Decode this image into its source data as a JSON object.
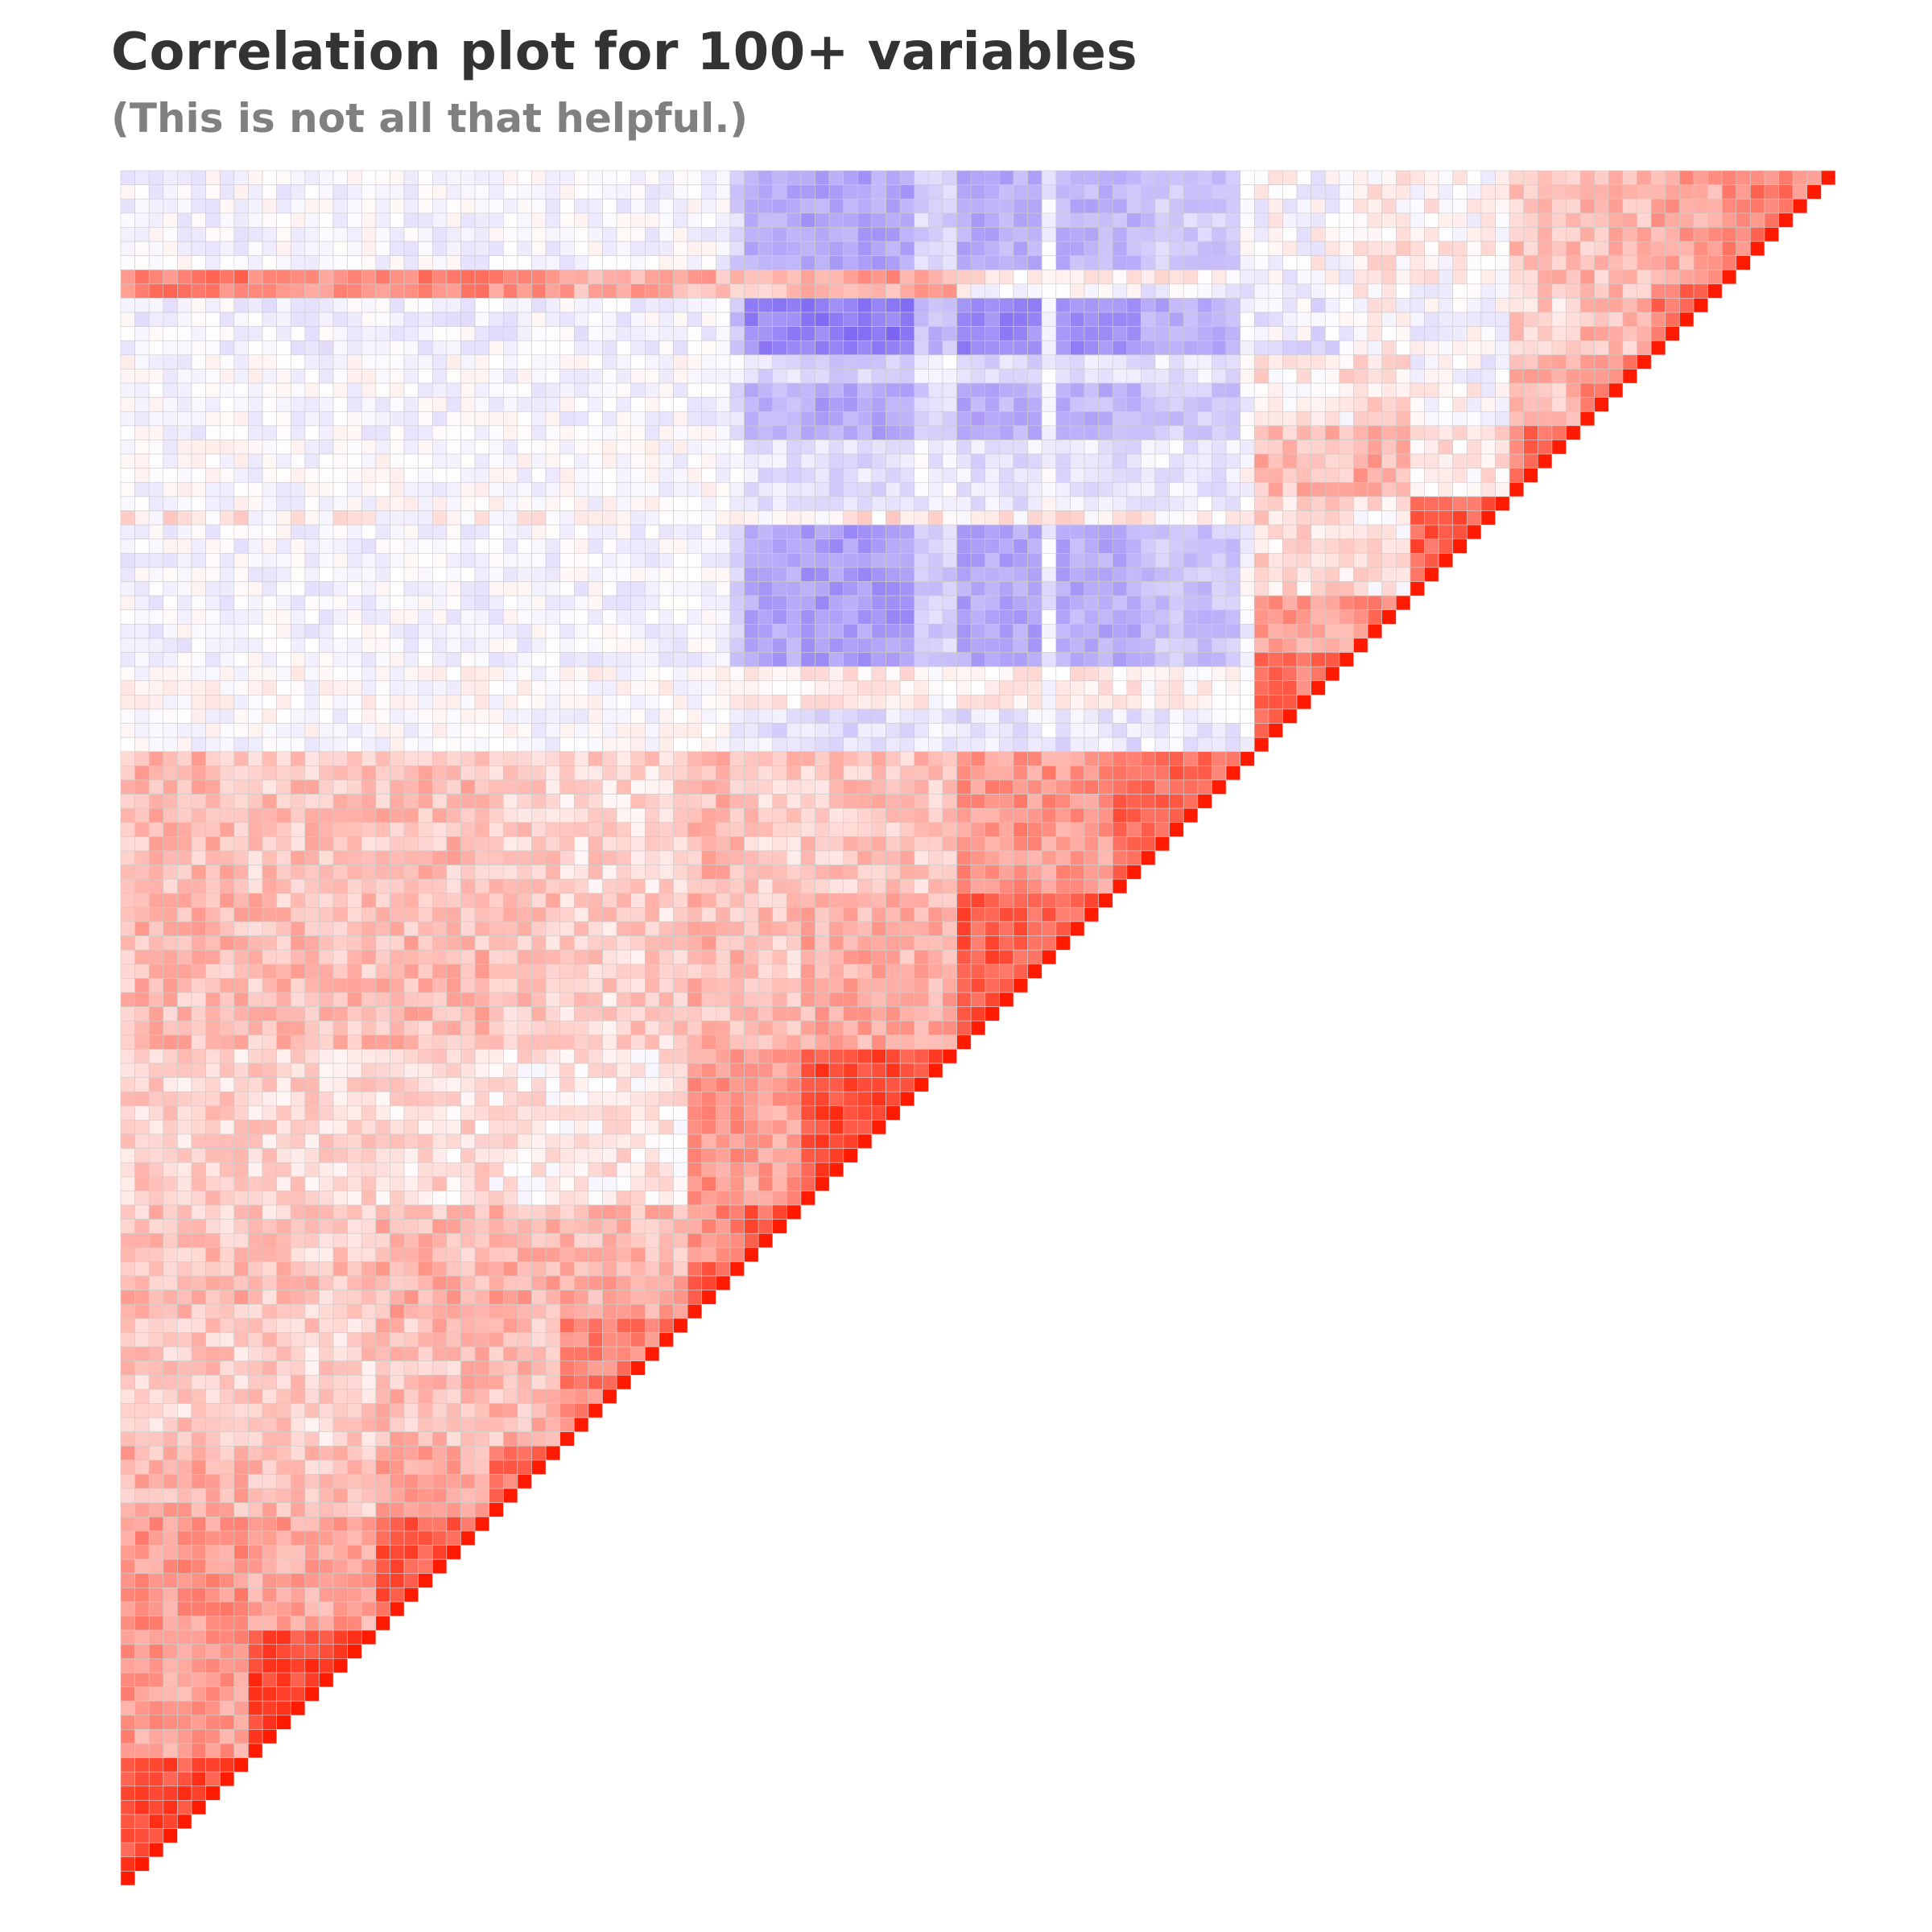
{
  "chart_data": {
    "type": "heatmap",
    "title": "Correlation plot for 100+ variables",
    "subtitle": "(This is not all that helpful.)",
    "n_variables": 121,
    "layout": "lower-triangular",
    "value_range": [
      -1,
      1
    ],
    "colors": {
      "negative": "#4422ee",
      "zero": "#ffffff",
      "positive": "#ff1a00",
      "cell_border": "#cccccc"
    },
    "block_boundaries": [
      0,
      9,
      18,
      26,
      31,
      40,
      44,
      48,
      59,
      70,
      80,
      87,
      91,
      98,
      103,
      108,
      113,
      121
    ],
    "block_correlation": [
      [
        0.78,
        0.42,
        0.45,
        0.33,
        0.22,
        0.3,
        0.25,
        0.2,
        0.3,
        0.3,
        0.35,
        0.4,
        0.1,
        0.4,
        0.42,
        0.55,
        0.58
      ],
      [
        0.42,
        0.8,
        0.4,
        0.28,
        0.2,
        0.25,
        0.22,
        0.18,
        0.28,
        0.25,
        0.3,
        0.35,
        0.08,
        0.35,
        0.38,
        0.45,
        0.48
      ],
      [
        0.45,
        0.4,
        0.7,
        0.38,
        0.28,
        0.35,
        0.3,
        0.15,
        0.3,
        0.28,
        0.3,
        0.35,
        0.05,
        0.35,
        0.4,
        0.5,
        0.52
      ],
      [
        0.33,
        0.28,
        0.38,
        0.6,
        0.3,
        0.35,
        0.3,
        0.1,
        0.25,
        0.22,
        0.25,
        0.3,
        0.05,
        0.3,
        0.35,
        0.45,
        0.48
      ],
      [
        0.22,
        0.2,
        0.28,
        0.3,
        0.55,
        0.35,
        0.3,
        0.1,
        0.2,
        0.18,
        0.2,
        0.25,
        0.0,
        0.25,
        0.3,
        0.35,
        0.38
      ],
      [
        0.3,
        0.25,
        0.35,
        0.35,
        0.35,
        0.75,
        0.5,
        0.45,
        0.3,
        0.3,
        0.25,
        0.3,
        0.1,
        0.4,
        0.35,
        0.3,
        0.35
      ],
      [
        0.25,
        0.22,
        0.3,
        0.3,
        0.3,
        0.5,
        0.7,
        0.4,
        0.25,
        0.22,
        0.2,
        0.25,
        0.05,
        0.3,
        0.3,
        0.25,
        0.3
      ],
      [
        0.2,
        0.18,
        0.15,
        0.1,
        0.1,
        0.45,
        0.4,
        0.8,
        0.35,
        0.25,
        0.25,
        0.3,
        0.1,
        0.5,
        0.4,
        0.35,
        0.4
      ],
      [
        0.3,
        0.28,
        0.3,
        0.25,
        0.2,
        0.3,
        0.25,
        0.35,
        0.7,
        0.45,
        0.4,
        0.4,
        0.1,
        0.35,
        0.2,
        0.05,
        0.1
      ],
      [
        0.3,
        0.25,
        0.28,
        0.22,
        0.18,
        0.3,
        0.22,
        0.25,
        0.45,
        0.65,
        0.45,
        0.35,
        0.1,
        0.35,
        0.1,
        -0.05,
        0.05
      ],
      [
        0.35,
        0.3,
        0.3,
        0.25,
        0.2,
        0.25,
        0.2,
        0.25,
        0.4,
        0.45,
        0.6,
        0.4,
        0.15,
        0.3,
        0.1,
        -0.1,
        0.0
      ],
      [
        0.4,
        0.35,
        0.35,
        0.3,
        0.25,
        0.3,
        0.25,
        0.3,
        0.4,
        0.35,
        0.4,
        0.55,
        0.1,
        0.35,
        0.15,
        0.05,
        0.1
      ],
      [
        0.1,
        0.08,
        0.05,
        0.05,
        0.0,
        0.1,
        0.05,
        0.1,
        0.1,
        0.1,
        0.15,
        0.1,
        0.7,
        0.1,
        0.0,
        0.0,
        0.05
      ],
      [
        0.4,
        0.35,
        0.35,
        0.3,
        0.25,
        0.4,
        0.3,
        0.5,
        0.35,
        0.35,
        0.3,
        0.35,
        0.1,
        0.6,
        0.3,
        0.2,
        0.25
      ],
      [
        0.42,
        0.38,
        0.4,
        0.35,
        0.3,
        0.35,
        0.3,
        0.4,
        0.2,
        0.1,
        0.1,
        0.15,
        0.0,
        0.3,
        0.55,
        0.3,
        0.3
      ],
      [
        0.55,
        0.45,
        0.5,
        0.45,
        0.35,
        0.3,
        0.25,
        0.35,
        0.05,
        -0.05,
        -0.1,
        0.05,
        0.0,
        0.2,
        0.3,
        0.6,
        0.4
      ],
      [
        0.58,
        0.48,
        0.52,
        0.48,
        0.38,
        0.35,
        0.3,
        0.4,
        0.1,
        0.05,
        0.0,
        0.1,
        0.05,
        0.25,
        0.3,
        0.4,
        0.55
      ]
    ],
    "negative_rows": [
      {
        "from": 0,
        "to": 7,
        "corr": -0.4
      },
      {
        "from": 9,
        "to": 13,
        "corr": -0.6
      },
      {
        "from": 13,
        "to": 15,
        "corr": -0.2
      },
      {
        "from": 15,
        "to": 19,
        "corr": -0.4
      },
      {
        "from": 19,
        "to": 24,
        "corr": -0.15
      },
      {
        "from": 25,
        "to": 35,
        "corr": -0.45
      },
      {
        "from": 35,
        "to": 38,
        "corr": 0.1
      },
      {
        "from": 38,
        "to": 41,
        "corr": -0.15
      }
    ],
    "negative_cols": [
      {
        "from": 43,
        "to": 44,
        "w": 0.5
      },
      {
        "from": 44,
        "to": 48,
        "w": 0.9
      },
      {
        "from": 48,
        "to": 56,
        "w": 1.0
      },
      {
        "from": 56,
        "to": 59,
        "w": 0.5
      },
      {
        "from": 59,
        "to": 65,
        "w": 0.9
      },
      {
        "from": 65,
        "to": 66,
        "w": 0.2
      },
      {
        "from": 66,
        "to": 72,
        "w": 0.85
      },
      {
        "from": 72,
        "to": 79,
        "w": 0.6
      }
    ]
  }
}
